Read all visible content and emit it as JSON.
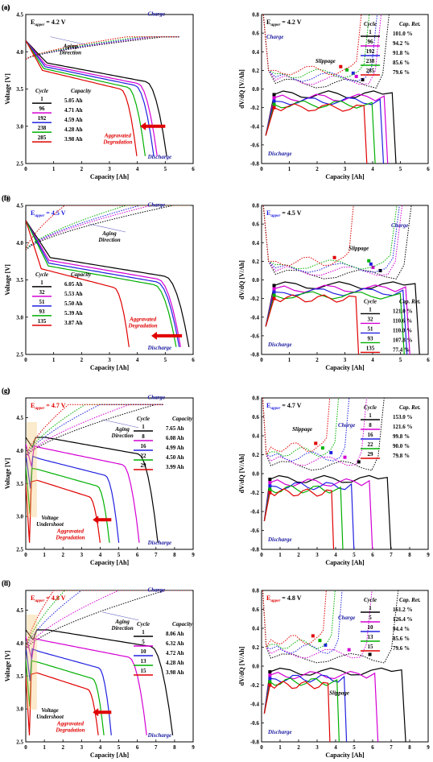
{
  "chart_data": [
    {
      "panel": "(a)",
      "type": "line",
      "xlabel": "Capacity [Ah]",
      "ylabel": "Voltage [V]",
      "xlim": [
        0,
        6
      ],
      "ylim": [
        2.5,
        4.5
      ],
      "xticks": [
        "0",
        "1",
        "2",
        "3",
        "4",
        "5",
        "6"
      ],
      "yticks": [
        "2.5",
        "3.0",
        "3.5",
        "4.0",
        "4.5"
      ],
      "upper_label": "E",
      "upper_sub": "upper",
      "upper_value": "= 4.2 V",
      "upper_color": "#000000",
      "legend_headers": [
        "Cycle",
        "Capacity"
      ],
      "series": [
        {
          "name": "1",
          "value": "5.05 Ah",
          "color": "#000000",
          "discharge_end": 5.05,
          "charge_start": 4.95
        },
        {
          "name": "96",
          "value": "4.71 Ah",
          "color": "#d400d4",
          "discharge_end": 4.71,
          "charge_start": 4.6
        },
        {
          "name": "192",
          "value": "4.59 Ah",
          "color": "#2020e0",
          "discharge_end": 4.59,
          "charge_start": 4.45
        },
        {
          "name": "238",
          "value": "4.28 Ah",
          "color": "#00b000",
          "discharge_end": 4.28,
          "charge_start": 4.1
        },
        {
          "name": "285",
          "value": "3.98 Ah",
          "color": "#e00000",
          "discharge_end": 3.98,
          "charge_start": 3.6
        }
      ],
      "annotations": {
        "charge": "Charge",
        "discharge": "Discharge",
        "aging": [
          "Aging",
          "Direction"
        ],
        "aggravated": [
          "Aggravated",
          "Degradation"
        ]
      }
    },
    {
      "panel": "(b)",
      "type": "line",
      "xlabel": "Capacity [Ah]",
      "ylabel": "Voltage [V]",
      "xlim": [
        0,
        6
      ],
      "ylim": [
        2.5,
        4.5
      ],
      "xticks": [
        "0",
        "1",
        "2",
        "3",
        "4",
        "5",
        "6"
      ],
      "yticks": [
        "2.5",
        "3.0",
        "3.5",
        "4.0",
        "4.5"
      ],
      "upper_label": "E",
      "upper_sub": "upper",
      "upper_value": "= 4.5 V",
      "upper_color": "#2020e0",
      "legend_headers": [
        "Cycle",
        "Capacity"
      ],
      "series": [
        {
          "name": "1",
          "value": "6.05 Ah",
          "color": "#000000",
          "discharge_end": 5.85,
          "charge_start": 5.3
        },
        {
          "name": "32",
          "value": "5.53 Ah",
          "color": "#d400d4",
          "discharge_end": 5.55,
          "charge_start": 4.5
        },
        {
          "name": "51",
          "value": "5.50 Ah",
          "color": "#2020e0",
          "discharge_end": 5.5,
          "charge_start": 4.1
        },
        {
          "name": "93",
          "value": "5.39 Ah",
          "color": "#00b000",
          "discharge_end": 5.39,
          "charge_start": 3.6
        },
        {
          "name": "135",
          "value": "3.87 Ah",
          "color": "#e00000",
          "discharge_end": 3.7,
          "charge_start": 1.4
        }
      ],
      "annotations": {
        "charge": "Charge",
        "discharge": "Discharge",
        "aging": [
          "Aging",
          "Direction"
        ],
        "aggravated": [
          "Aggravated",
          "Degradation"
        ]
      }
    },
    {
      "panel": "(c)",
      "type": "line",
      "xlabel": "Capacity [Ah]",
      "ylabel": "Voltage [V]",
      "xlim": [
        0,
        9
      ],
      "ylim": [
        2.5,
        4.8
      ],
      "xticks": [
        "0",
        "1",
        "2",
        "3",
        "4",
        "5",
        "6",
        "7",
        "8",
        "9"
      ],
      "yticks": [
        "2.5",
        "3.0",
        "3.5",
        "4.0",
        "4.5"
      ],
      "upper_label": "E",
      "upper_sub": "upper",
      "upper_value": "= 4.7 V",
      "upper_color": "#e00000",
      "legend_headers": [
        "Cycle",
        "Capacity"
      ],
      "series": [
        {
          "name": "1",
          "value": "7.65 Ah",
          "color": "#000000",
          "discharge_end": 7.1,
          "charge_start": 7.0,
          "start_v": 4.2
        },
        {
          "name": "8",
          "value": "6.08 Ah",
          "color": "#d400d4",
          "discharge_end": 6.1,
          "charge_start": 5.6,
          "start_v": 4.1
        },
        {
          "name": "16",
          "value": "4.99 Ah",
          "color": "#2020e0",
          "discharge_end": 5.0,
          "charge_start": 4.0,
          "start_v": 3.95
        },
        {
          "name": "22",
          "value": "4.50 Ah",
          "color": "#00b000",
          "discharge_end": 4.5,
          "charge_start": 3.2,
          "start_v": 3.75
        },
        {
          "name": "29",
          "value": "3.99 Ah",
          "color": "#e00000",
          "discharge_end": 4.0,
          "charge_start": 2.3,
          "start_v": 3.5
        }
      ],
      "annotations": {
        "charge": "Charge",
        "discharge": "Discharge",
        "aging": [
          "Aging",
          "Direction"
        ],
        "aggravated": [
          "Aggravated",
          "Degradation"
        ],
        "undershoot": [
          "Voltage",
          "Undershoot"
        ]
      }
    },
    {
      "panel": "(d)",
      "type": "line",
      "xlabel": "Capacity [Ah]",
      "ylabel": "Voltage [V]",
      "xlim": [
        0,
        9
      ],
      "ylim": [
        2.5,
        4.8
      ],
      "xticks": [
        "0",
        "1",
        "2",
        "3",
        "4",
        "5",
        "6",
        "7",
        "8",
        "9"
      ],
      "yticks": [
        "2.5",
        "3.0",
        "3.5",
        "4.0",
        "4.5"
      ],
      "upper_label": "E",
      "upper_sub": "upper",
      "upper_value": "= 4.8 V",
      "upper_color": "#e00000",
      "legend_headers": [
        "Cycle",
        "Capacity"
      ],
      "series": [
        {
          "name": "1",
          "value": "8.06 Ah",
          "color": "#000000",
          "discharge_end": 7.9,
          "charge_start": 7.5,
          "start_v": 4.2
        },
        {
          "name": "5",
          "value": "6.32 Ah",
          "color": "#d400d4",
          "discharge_end": 6.5,
          "charge_start": 5.0,
          "start_v": 4.1
        },
        {
          "name": "10",
          "value": "4.72 Ah",
          "color": "#2020e0",
          "discharge_end": 4.6,
          "charge_start": 3.0,
          "start_v": 3.95
        },
        {
          "name": "13",
          "value": "4.28 Ah",
          "color": "#00b000",
          "discharge_end": 4.2,
          "charge_start": 2.1,
          "start_v": 3.75
        },
        {
          "name": "15",
          "value": "3.98 Ah",
          "color": "#e00000",
          "discharge_end": 3.9,
          "charge_start": 1.5,
          "start_v": 3.5
        }
      ],
      "annotations": {
        "charge": "Charge",
        "discharge": "Discharge",
        "aging": [
          "Aging",
          "Direction"
        ],
        "aggravated": [
          "Aggravated",
          "Degradation"
        ],
        "undershoot": [
          "Voltage",
          "Undershoot"
        ]
      }
    },
    {
      "panel": "(e)",
      "type": "line",
      "xlabel": "Capacity [Ah]",
      "ylabel": "dV/dQ [V/Ah]",
      "xlim": [
        0,
        6
      ],
      "ylim": [
        -0.8,
        0.8
      ],
      "xticks": [
        "0",
        "1",
        "2",
        "3",
        "4",
        "5",
        "6"
      ],
      "yticks": [
        "-0.8",
        "-0.6",
        "-0.4",
        "-0.2",
        "0.0",
        "0.2",
        "0.4",
        "0.6",
        "0.8"
      ],
      "upper_label": "E",
      "upper_sub": "upper",
      "upper_value": "= 4.2 V",
      "upper_color": "#000000",
      "legend_headers": [
        "Cycle",
        "Cap. Ret."
      ],
      "series": [
        {
          "name": "1",
          "value": "101.0 %",
          "color": "#000000",
          "end": 4.85
        },
        {
          "name": "96",
          "value": "94.2 %",
          "color": "#d400d4",
          "end": 4.55
        },
        {
          "name": "192",
          "value": "91.8 %",
          "color": "#2020e0",
          "end": 4.4
        },
        {
          "name": "238",
          "value": "85.6 %",
          "color": "#00b000",
          "end": 4.1
        },
        {
          "name": "285",
          "value": "79.6 %",
          "color": "#e00000",
          "end": 3.8
        }
      ],
      "annotations": {
        "charge": "Charge",
        "discharge": "Discharge",
        "slippage": "Slippage"
      }
    },
    {
      "panel": "(f)",
      "type": "line",
      "xlabel": "Capacity [Ah]",
      "ylabel": "dV/dQ [V/Ah]",
      "xlim": [
        0,
        6
      ],
      "ylim": [
        -0.8,
        0.8
      ],
      "xticks": [
        "0",
        "1",
        "2",
        "3",
        "4",
        "5",
        "6"
      ],
      "yticks": [
        "-0.8",
        "-0.6",
        "-0.4",
        "-0.2",
        "0.0",
        "0.2",
        "0.4",
        "0.6",
        "0.8"
      ],
      "upper_label": "E",
      "upper_sub": "upper",
      "upper_value": "= 4.5 V",
      "upper_color": "#2020e0",
      "legend_headers": [
        "Cycle",
        "Cap. Ret."
      ],
      "series": [
        {
          "name": "1",
          "value": "121.0 %",
          "color": "#000000",
          "end": 5.7
        },
        {
          "name": "32",
          "value": "110.6 %",
          "color": "#d400d4",
          "end": 5.35
        },
        {
          "name": "51",
          "value": "110.0 %",
          "color": "#2020e0",
          "end": 5.25
        },
        {
          "name": "93",
          "value": "107.8 %",
          "color": "#00b000",
          "end": 5.15
        },
        {
          "name": "135",
          "value": "77.4 %",
          "color": "#e00000",
          "end": 3.5
        }
      ],
      "annotations": {
        "charge": "Charge",
        "discharge": "Discharge",
        "slippage": "Slippage"
      }
    },
    {
      "panel": "(g)",
      "type": "line",
      "xlabel": "Capacity [Ah]",
      "ylabel": "dV/dQ [V/Ah]",
      "xlim": [
        0,
        9
      ],
      "ylim": [
        -0.8,
        0.8
      ],
      "xticks": [
        "0",
        "1",
        "2",
        "3",
        "4",
        "5",
        "6",
        "7",
        "8",
        "9"
      ],
      "yticks": [
        "-0.8",
        "-0.6",
        "-0.4",
        "-0.2",
        "0.0",
        "0.2",
        "0.4",
        "0.6",
        "0.8"
      ],
      "upper_label": "E",
      "upper_sub": "upper",
      "upper_value": "= 4.7 V",
      "upper_color": "#2020e0",
      "legend_headers": [
        "Cycle",
        "Cap. Ret."
      ],
      "series": [
        {
          "name": "1",
          "value": "153.0 %",
          "color": "#000000",
          "end": 7.0
        },
        {
          "name": "8",
          "value": "121.6 %",
          "color": "#d400d4",
          "end": 6.0
        },
        {
          "name": "16",
          "value": "99.8 %",
          "color": "#2020e0",
          "end": 5.0
        },
        {
          "name": "22",
          "value": "90.0 %",
          "color": "#00b000",
          "end": 4.4
        },
        {
          "name": "29",
          "value": "79.8 %",
          "color": "#e00000",
          "end": 3.9
        }
      ],
      "annotations": {
        "charge": "Charge",
        "discharge": "Discharge",
        "slippage": "Slippage"
      }
    },
    {
      "panel": "(h)",
      "type": "line",
      "xlabel": "Capacity [Ah]",
      "ylabel": "dV/dQ [V/Ah]",
      "xlim": [
        0,
        9
      ],
      "ylim": [
        -0.8,
        0.8
      ],
      "xticks": [
        "0",
        "1",
        "2",
        "3",
        "4",
        "5",
        "6",
        "7",
        "8",
        "9"
      ],
      "yticks": [
        "-0.8",
        "-0.6",
        "-0.4",
        "-0.2",
        "0.0",
        "0.2",
        "0.4",
        "0.6",
        "0.8"
      ],
      "upper_label": "E",
      "upper_sub": "upper",
      "upper_value": "= 4.8 V",
      "upper_color": "#e00000",
      "legend_headers": [
        "Cycle",
        "Cap. Ret."
      ],
      "series": [
        {
          "name": "1",
          "value": "161.2 %",
          "color": "#000000",
          "end": 7.8
        },
        {
          "name": "5",
          "value": "126.4 %",
          "color": "#d400d4",
          "end": 6.3
        },
        {
          "name": "10",
          "value": "94.4 %",
          "color": "#2020e0",
          "end": 4.6
        },
        {
          "name": "13",
          "value": "85.6 %",
          "color": "#00b000",
          "end": 4.2
        },
        {
          "name": "15",
          "value": "79.6 %",
          "color": "#e00000",
          "end": 3.7
        }
      ],
      "annotations": {
        "charge": "Charge",
        "discharge": "Discharge",
        "slippage": "Slippage"
      }
    }
  ]
}
